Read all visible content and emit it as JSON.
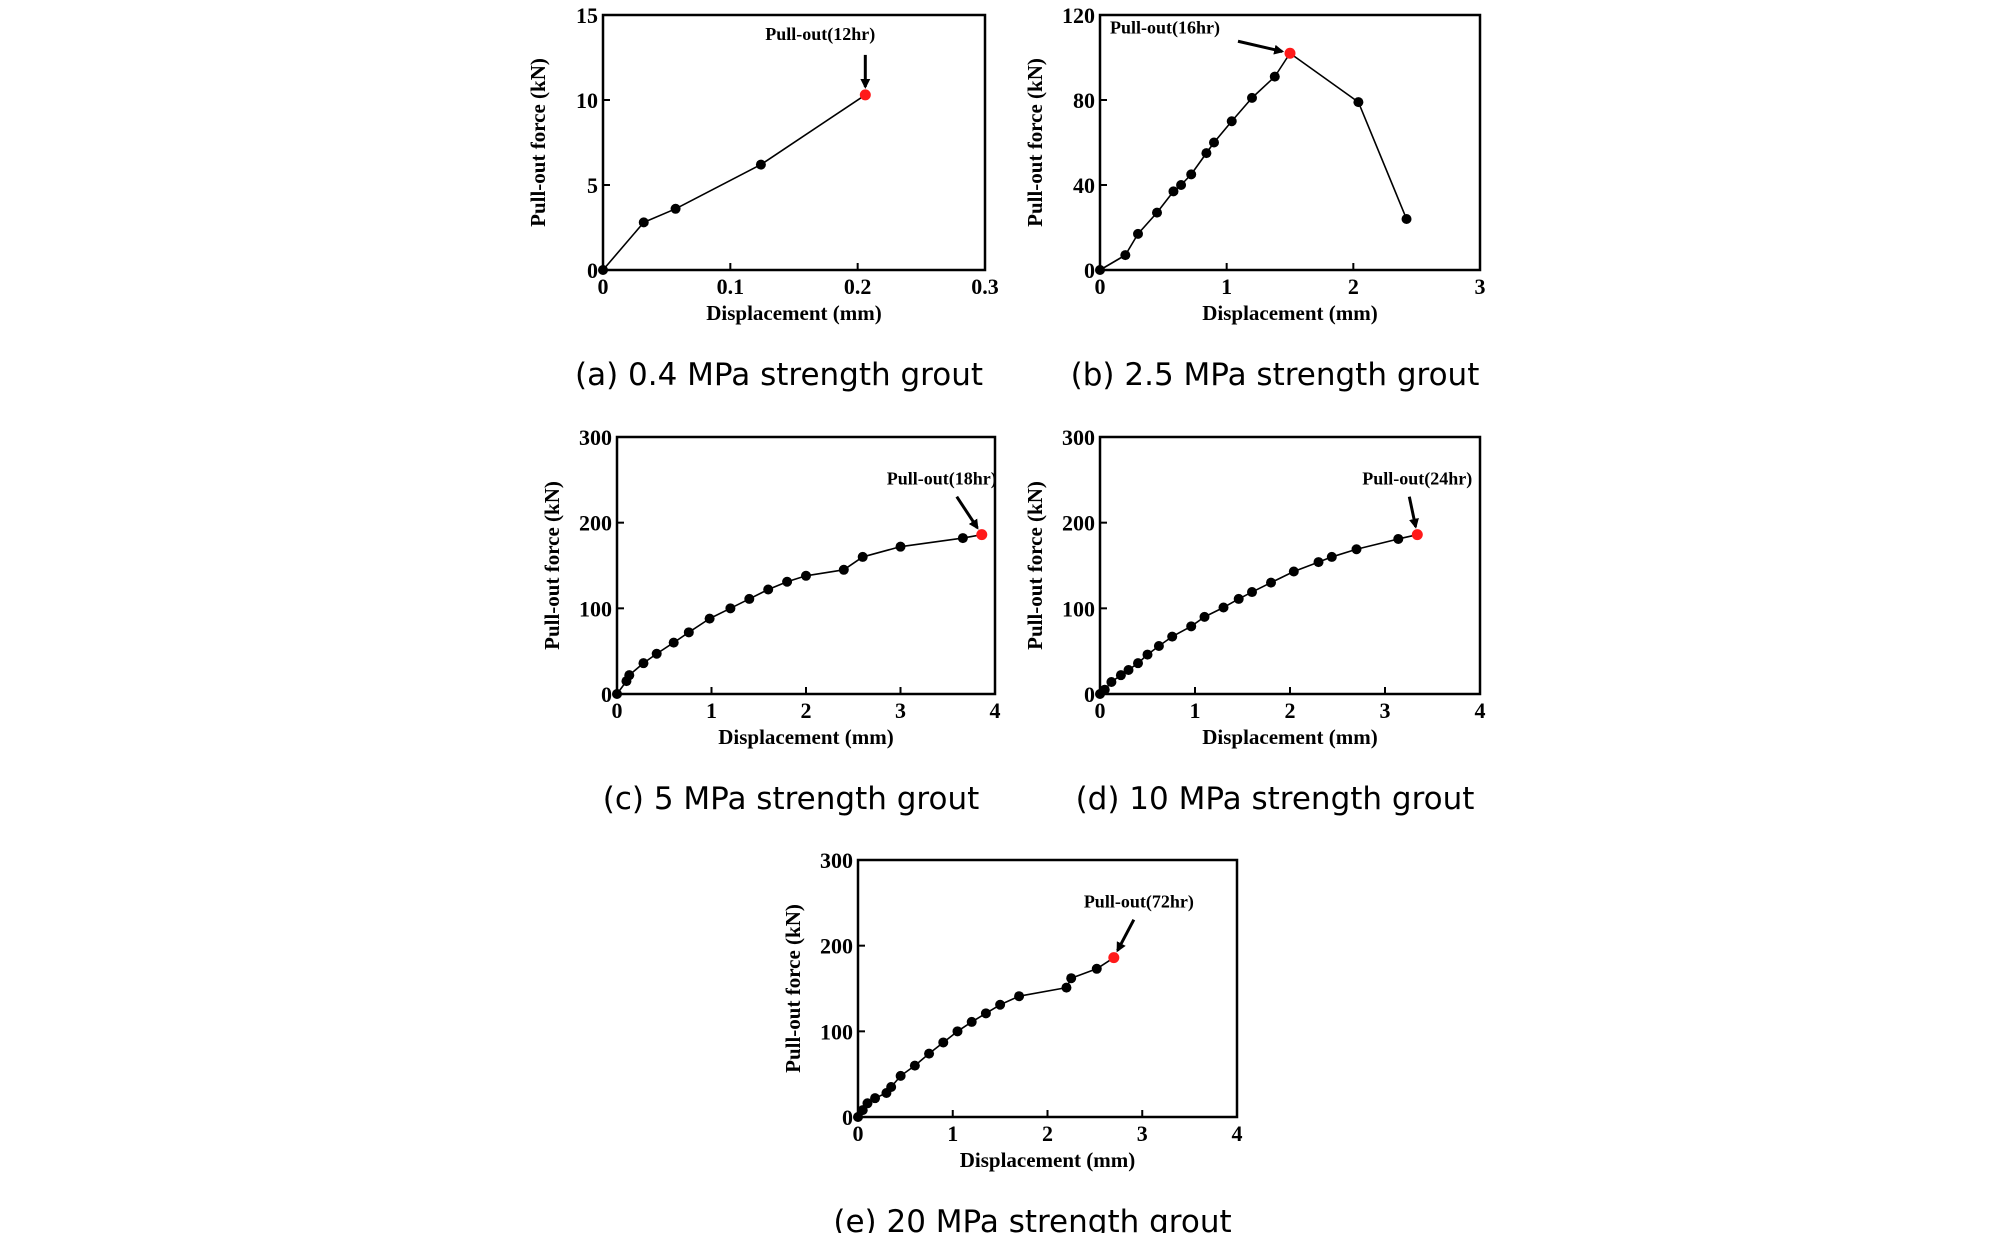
{
  "figure": {
    "colors": {
      "axis": "#000000",
      "line": "#000000",
      "point": "#000000",
      "pullout_point": "#ff1a1a"
    }
  },
  "chart_data": [
    {
      "type": "line",
      "id": "a",
      "caption": "(a) 0.4 MPa strength grout",
      "xlabel": "Displacement (mm)",
      "ylabel": "Pull-out force (kN)",
      "xlim": [
        0,
        0.3
      ],
      "ylim": [
        0,
        15
      ],
      "xticks": [
        0,
        0.1,
        0.2,
        0.3
      ],
      "xtick_labels": [
        "0",
        "0.1",
        "0.2",
        "0.3"
      ],
      "yticks": [
        0,
        5,
        10,
        15
      ],
      "ytick_labels": [
        "0",
        "5",
        "10",
        "15"
      ],
      "grid": false,
      "series": [
        {
          "name": "Pull-out force",
          "x": [
            0,
            0.032,
            0.057,
            0.124,
            0.206
          ],
          "y": [
            0,
            2.8,
            3.6,
            6.2,
            10.3
          ]
        }
      ],
      "pullout": {
        "label": "Pull-out(12hr)",
        "x": 0.206,
        "y": 10.3
      }
    },
    {
      "type": "line",
      "id": "b",
      "caption": "(b) 2.5 MPa strength grout",
      "xlabel": "Displacement (mm)",
      "ylabel": "Pull-out force (kN)",
      "xlim": [
        0,
        3
      ],
      "ylim": [
        0,
        120
      ],
      "xticks": [
        0,
        1,
        2,
        3
      ],
      "xtick_labels": [
        "0",
        "1",
        "2",
        "3"
      ],
      "yticks": [
        0,
        40,
        80,
        120
      ],
      "ytick_labels": [
        "0",
        "40",
        "80",
        "120"
      ],
      "grid": false,
      "series": [
        {
          "name": "Pull-out force",
          "x": [
            0,
            0.2,
            0.3,
            0.45,
            0.58,
            0.64,
            0.72,
            0.84,
            0.9,
            1.04,
            1.2,
            1.38,
            1.5,
            2.04,
            2.42
          ],
          "y": [
            0,
            7,
            17,
            27,
            37,
            40,
            45,
            55,
            60,
            70,
            81,
            91,
            102,
            79,
            24
          ]
        }
      ],
      "pullout": {
        "label": "Pull-out(16hr)",
        "x": 1.5,
        "y": 102
      }
    },
    {
      "type": "line",
      "id": "c",
      "caption": "(c) 5 MPa strength grout",
      "xlabel": "Displacement (mm)",
      "ylabel": "Pull-out force (kN)",
      "xlim": [
        0,
        4
      ],
      "ylim": [
        0,
        300
      ],
      "xticks": [
        0,
        1,
        2,
        3,
        4
      ],
      "xtick_labels": [
        "0",
        "1",
        "2",
        "3",
        "4"
      ],
      "yticks": [
        0,
        100,
        200,
        300
      ],
      "ytick_labels": [
        "0",
        "100",
        "200",
        "300"
      ],
      "grid": false,
      "series": [
        {
          "name": "Pull-out force",
          "x": [
            0,
            0.1,
            0.13,
            0.28,
            0.42,
            0.6,
            0.76,
            0.98,
            1.2,
            1.4,
            1.6,
            1.8,
            2.0,
            2.4,
            2.6,
            3.0,
            3.66,
            3.86
          ],
          "y": [
            0,
            15,
            22,
            36,
            47,
            60,
            72,
            88,
            100,
            111,
            122,
            131,
            138,
            145,
            160,
            172,
            182,
            186
          ]
        }
      ],
      "pullout": {
        "label": "Pull-out(18hr)",
        "x": 3.86,
        "y": 186
      }
    },
    {
      "type": "line",
      "id": "d",
      "caption": "(d) 10 MPa strength grout",
      "xlabel": "Displacement (mm)",
      "ylabel": "Pull-out force (kN)",
      "xlim": [
        0,
        4
      ],
      "ylim": [
        0,
        300
      ],
      "xticks": [
        0,
        1,
        2,
        3,
        4
      ],
      "xtick_labels": [
        "0",
        "1",
        "2",
        "3",
        "4"
      ],
      "yticks": [
        0,
        100,
        200,
        300
      ],
      "ytick_labels": [
        "0",
        "100",
        "200",
        "300"
      ],
      "grid": false,
      "series": [
        {
          "name": "Pull-out force",
          "x": [
            0,
            0.05,
            0.12,
            0.22,
            0.3,
            0.4,
            0.5,
            0.62,
            0.76,
            0.96,
            1.1,
            1.3,
            1.46,
            1.6,
            1.8,
            2.04,
            2.3,
            2.44,
            2.7,
            3.14,
            3.34
          ],
          "y": [
            0,
            5,
            14,
            22,
            28,
            36,
            46,
            56,
            67,
            79,
            90,
            101,
            111,
            119,
            130,
            143,
            154,
            160,
            169,
            181,
            186
          ]
        }
      ],
      "pullout": {
        "label": "Pull-out(24hr)",
        "x": 3.34,
        "y": 186
      }
    },
    {
      "type": "line",
      "id": "e",
      "caption": "(e) 20 MPa strength grout",
      "xlabel": "Displacement (mm)",
      "ylabel": "Pull-out force (kN)",
      "xlim": [
        0,
        4
      ],
      "ylim": [
        0,
        300
      ],
      "xticks": [
        0,
        1,
        2,
        3,
        4
      ],
      "xtick_labels": [
        "0",
        "1",
        "2",
        "3",
        "4"
      ],
      "yticks": [
        0,
        100,
        200,
        300
      ],
      "ytick_labels": [
        "0",
        "100",
        "200",
        "300"
      ],
      "grid": false,
      "series": [
        {
          "name": "Pull-out force",
          "x": [
            0,
            0.05,
            0.1,
            0.18,
            0.3,
            0.35,
            0.45,
            0.6,
            0.75,
            0.9,
            1.05,
            1.2,
            1.35,
            1.5,
            1.7,
            2.2,
            2.25,
            2.52,
            2.7
          ],
          "y": [
            0,
            8,
            16,
            22,
            28,
            35,
            48,
            60,
            74,
            87,
            100,
            111,
            121,
            131,
            141,
            151,
            162,
            173,
            186
          ]
        }
      ],
      "pullout": {
        "label": "Pull-out(72hr)",
        "x": 2.7,
        "y": 186
      }
    }
  ]
}
